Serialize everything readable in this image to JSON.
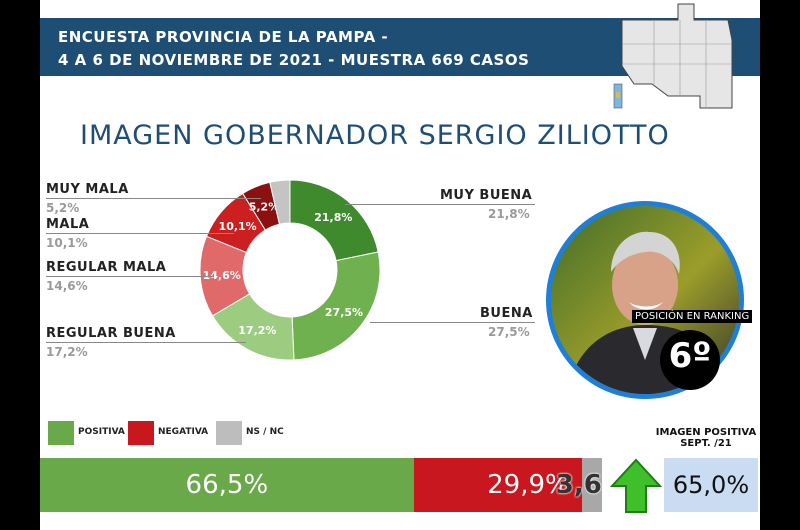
{
  "header": {
    "line1": "ENCUESTA PROVINCIA DE LA PAMPA -",
    "line2": "4 A 6 DE NOVIEMBRE DE 2021 - MUESTRA 669 CASOS"
  },
  "title": "IMAGEN GOBERNADOR   SERGIO ZILIOTTO",
  "chart_data": [
    {
      "type": "pie",
      "title": "IMAGEN GOBERNADOR   SERGIO ZILIOTTO",
      "slices": [
        {
          "name": "MUY BUENA",
          "value": 21.8,
          "label": "21,8%",
          "color": "#3f8a2c"
        },
        {
          "name": "BUENA",
          "value": 27.5,
          "label": "27,5%",
          "color": "#6fb04f"
        },
        {
          "name": "REGULAR BUENA",
          "value": 17.2,
          "label": "17,2%",
          "color": "#9ccc80"
        },
        {
          "name": "REGULAR MALA",
          "value": 14.6,
          "label": "14,6%",
          "color": "#e06a6a"
        },
        {
          "name": "MALA",
          "value": 10.1,
          "label": "10,1%",
          "color": "#cc1f1f"
        },
        {
          "name": "MUY MALA",
          "value": 5.2,
          "label": "5,2%",
          "color": "#8b1010"
        },
        {
          "name": "NS / NC",
          "value": 3.6,
          "label": "",
          "color": "#c4c4c4"
        }
      ]
    },
    {
      "type": "bar",
      "orientation": "horizontal-stacked",
      "segments": [
        {
          "name": "POSITIVA",
          "value": 66.5,
          "label": "66,5%",
          "color": "#6aa94a"
        },
        {
          "name": "NEGATIVA",
          "value": 29.9,
          "label": "29,9%",
          "color": "#c8171e"
        },
        {
          "name": "NS / NC",
          "value": 3.6,
          "label": "3,6",
          "color": "#a8a8a8"
        }
      ]
    }
  ],
  "labels": {
    "muy_buena": {
      "name": "MUY BUENA",
      "value": "21,8%"
    },
    "buena": {
      "name": "BUENA",
      "value": "27,5%"
    },
    "regular_buena": {
      "name": "REGULAR BUENA",
      "value": "17,2%"
    },
    "regular_mala": {
      "name": "REGULAR MALA",
      "value": "14,6%"
    },
    "mala": {
      "name": "MALA",
      "value": "10,1%"
    },
    "muy_mala": {
      "name": "MUY MALA",
      "value": "5,2%"
    }
  },
  "legend": [
    {
      "label": "POSITIVA",
      "color": "#6aa94a"
    },
    {
      "label": "NEGATIVA",
      "color": "#c8171e"
    },
    {
      "label": "NS / NC",
      "color": "#bdbdbd"
    }
  ],
  "ranking": {
    "label": "POSICIÓN EN RANKING",
    "value": "6º"
  },
  "imagen_positiva": {
    "label_line1": "IMAGEN POSITIVA",
    "label_line2": "SEPT. /21",
    "value": "65,0%",
    "value_num": 65.0
  }
}
